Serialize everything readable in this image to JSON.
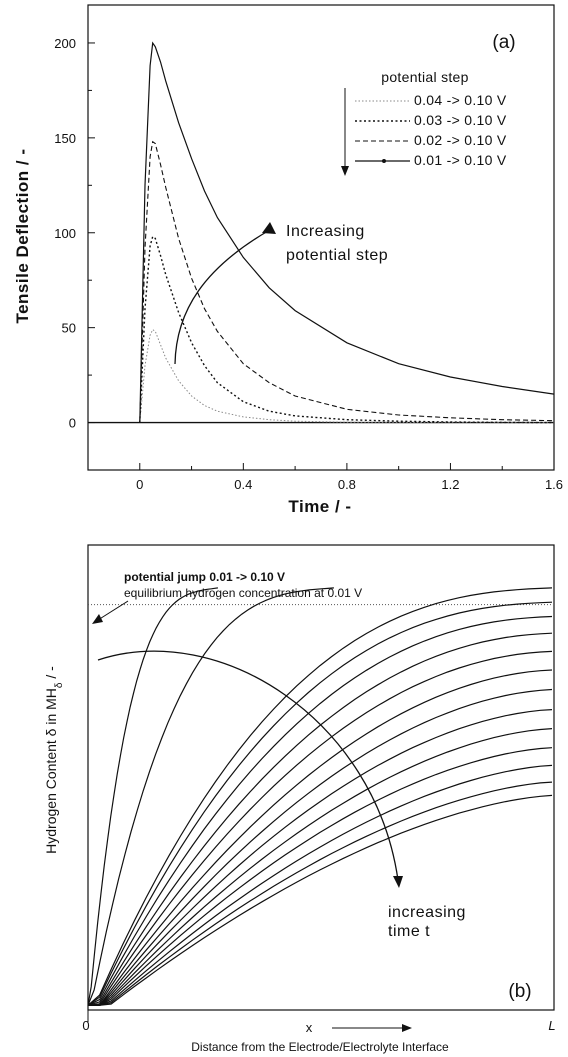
{
  "chart_data": [
    {
      "type": "line",
      "panel_label": "(a)",
      "xlabel": "Time / -",
      "ylabel": "Tensile Deflection / -",
      "xlim": [
        -0.2,
        1.6
      ],
      "ylim": [
        -25,
        220
      ],
      "xticks": [
        0,
        0.4,
        0.8,
        1.2,
        1.6
      ],
      "xtick_labels": [
        "0",
        "0.4",
        "0.8",
        "1.2",
        "1.6"
      ],
      "yticks": [
        0,
        50,
        100,
        150,
        200
      ],
      "ytick_labels": [
        "0",
        "50",
        "100",
        "150",
        "200"
      ],
      "legend_title": "potential step",
      "legend_position": "top-right",
      "annotation": [
        "Increasing",
        "potential step"
      ],
      "series": [
        {
          "name": "0.04 -> 0.10 V",
          "style": "dotted-light",
          "x": [
            0,
            0.02,
            0.04,
            0.05,
            0.06,
            0.08,
            0.1,
            0.15,
            0.2,
            0.25,
            0.3,
            0.4,
            0.5,
            0.6,
            0.8,
            1.0,
            1.2,
            1.4,
            1.6
          ],
          "values": [
            0,
            30,
            46,
            49,
            48,
            41,
            34,
            22,
            14,
            9,
            6,
            3,
            1.5,
            0.7,
            0.2,
            0.1,
            0,
            0,
            0
          ]
        },
        {
          "name": "0.03 -> 0.10 V",
          "style": "dotted",
          "x": [
            0,
            0.02,
            0.04,
            0.05,
            0.06,
            0.08,
            0.1,
            0.15,
            0.2,
            0.25,
            0.3,
            0.4,
            0.5,
            0.6,
            0.8,
            1.0,
            1.2,
            1.4,
            1.6
          ],
          "values": [
            0,
            60,
            93,
            98,
            97,
            88,
            78,
            58,
            42,
            30,
            21,
            11,
            6,
            3.5,
            1.5,
            0.7,
            0.3,
            0.1,
            0
          ]
        },
        {
          "name": "0.02 -> 0.10 V",
          "style": "dashed",
          "x": [
            0,
            0.02,
            0.04,
            0.05,
            0.06,
            0.08,
            0.1,
            0.15,
            0.2,
            0.25,
            0.3,
            0.4,
            0.5,
            0.6,
            0.8,
            1.0,
            1.2,
            1.4,
            1.6
          ],
          "values": [
            0,
            92,
            140,
            148,
            147,
            136,
            124,
            97,
            76,
            60,
            48,
            31,
            21,
            14,
            7,
            4,
            2.5,
            1.5,
            1
          ]
        },
        {
          "name": "0.01 -> 0.10 V",
          "style": "solid",
          "x": [
            0,
            0.02,
            0.04,
            0.05,
            0.06,
            0.08,
            0.1,
            0.15,
            0.2,
            0.25,
            0.3,
            0.4,
            0.5,
            0.6,
            0.8,
            1.0,
            1.2,
            1.4,
            1.6
          ],
          "values": [
            0,
            125,
            188,
            200,
            198,
            190,
            180,
            158,
            139,
            122,
            108,
            87,
            71,
            59,
            42,
            31,
            24,
            19,
            15
          ]
        }
      ]
    },
    {
      "type": "line",
      "panel_label": "(b)",
      "ylabel": "Hydrogen Content δ in MH",
      "ylabel_subscript": "δ",
      "ylabel_suffix": " / -",
      "xlabel": "Distance from the Electrode/Electrolyte Interface",
      "x_arrow_label": "x",
      "xtick_labels": [
        "0",
        "L"
      ],
      "title_bold": "potential jump 0.01 -> 0.10 V",
      "subtitle": "equilibrium hydrogen concentration at 0.01 V",
      "annotation": [
        "increasing",
        "time t"
      ],
      "xlim": [
        0,
        1
      ],
      "ylim": [
        0,
        1
      ],
      "equilibrium_level": 0.875,
      "profile_end_values": [
        0.875,
        0.875,
        0.875,
        0.845,
        0.815,
        0.78,
        0.742,
        0.703,
        0.662,
        0.62,
        0.58,
        0.54,
        0.503,
        0.468,
        0.44
      ],
      "profile_reach": [
        0.28,
        0.53,
        1.0,
        1.0,
        1.0,
        1.0,
        1.0,
        1.0,
        1.0,
        1.0,
        1.0,
        1.0,
        1.0,
        1.0,
        1.0
      ],
      "profile_shape_factor": [
        0.16,
        0.32,
        0.55,
        0.6,
        0.68,
        0.75,
        0.8,
        0.85,
        0.88,
        0.9,
        0.92,
        0.93,
        0.95,
        0.96,
        0.97
      ]
    }
  ]
}
